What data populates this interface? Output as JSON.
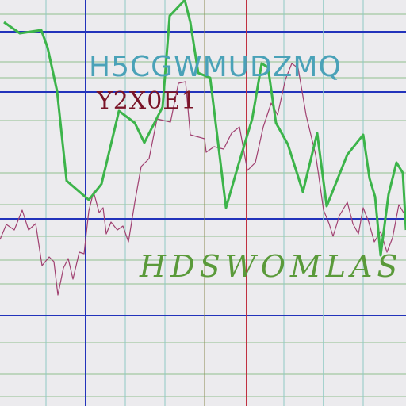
{
  "texts": {
    "line1": "H5CGWMUDZMQ",
    "line2": "Y2X0E1",
    "line3": "HDSWOMLAS"
  },
  "colors": {
    "background": "#ecebee",
    "grid_minor_green": "#8fbf8f",
    "grid_minor_teal": "#8fc9c4",
    "grid_blue": "#2233bb",
    "grid_red": "#c03040",
    "grid_olive": "#8a8a50",
    "series_thick": "#3cb44a",
    "series_thin": "#a04070"
  },
  "series": {
    "thick": [
      [
        5,
        28
      ],
      [
        25,
        42
      ],
      [
        52,
        38
      ],
      [
        60,
        60
      ],
      [
        72,
        115
      ],
      [
        84,
        228
      ],
      [
        112,
        252
      ],
      [
        128,
        232
      ],
      [
        150,
        140
      ],
      [
        170,
        155
      ],
      [
        182,
        180
      ],
      [
        205,
        135
      ],
      [
        214,
        20
      ],
      [
        233,
        0
      ],
      [
        240,
        28
      ],
      [
        250,
        92
      ],
      [
        265,
        98
      ],
      [
        285,
        262
      ],
      [
        300,
        210
      ],
      [
        318,
        150
      ],
      [
        330,
        80
      ],
      [
        338,
        85
      ],
      [
        348,
        155
      ],
      [
        363,
        182
      ],
      [
        382,
        242
      ],
      [
        400,
        168
      ],
      [
        412,
        260
      ],
      [
        438,
        195
      ],
      [
        458,
        170
      ],
      [
        466,
        225
      ],
      [
        473,
        248
      ],
      [
        480,
        322
      ],
      [
        490,
        245
      ],
      [
        500,
        205
      ],
      [
        508,
        218
      ],
      [
        512,
        290
      ]
    ],
    "thin": [
      [
        0,
        302
      ],
      [
        8,
        283
      ],
      [
        18,
        290
      ],
      [
        28,
        265
      ],
      [
        36,
        290
      ],
      [
        45,
        282
      ],
      [
        53,
        335
      ],
      [
        62,
        324
      ],
      [
        68,
        330
      ],
      [
        73,
        372
      ],
      [
        80,
        338
      ],
      [
        86,
        326
      ],
      [
        92,
        352
      ],
      [
        100,
        318
      ],
      [
        106,
        320
      ],
      [
        112,
        266
      ],
      [
        118,
        242
      ],
      [
        125,
        268
      ],
      [
        130,
        262
      ],
      [
        134,
        295
      ],
      [
        140,
        280
      ],
      [
        148,
        290
      ],
      [
        155,
        285
      ],
      [
        162,
        305
      ],
      [
        170,
        255
      ],
      [
        178,
        210
      ],
      [
        188,
        200
      ],
      [
        198,
        150
      ],
      [
        215,
        154
      ],
      [
        225,
        105
      ],
      [
        234,
        103
      ],
      [
        240,
        170
      ],
      [
        258,
        175
      ],
      [
        260,
        192
      ],
      [
        270,
        185
      ],
      [
        282,
        188
      ],
      [
        292,
        168
      ],
      [
        302,
        160
      ],
      [
        312,
        215
      ],
      [
        322,
        205
      ],
      [
        332,
        160
      ],
      [
        342,
        130
      ],
      [
        350,
        145
      ],
      [
        360,
        100
      ],
      [
        368,
        80
      ],
      [
        376,
        86
      ],
      [
        386,
        145
      ],
      [
        398,
        195
      ],
      [
        402,
        222
      ],
      [
        408,
        265
      ],
      [
        415,
        282
      ],
      [
        420,
        298
      ],
      [
        428,
        272
      ],
      [
        438,
        255
      ],
      [
        445,
        282
      ],
      [
        452,
        295
      ],
      [
        458,
        262
      ],
      [
        465,
        280
      ],
      [
        472,
        305
      ],
      [
        480,
        292
      ],
      [
        488,
        318
      ],
      [
        495,
        300
      ],
      [
        503,
        258
      ],
      [
        510,
        270
      ]
    ]
  }
}
